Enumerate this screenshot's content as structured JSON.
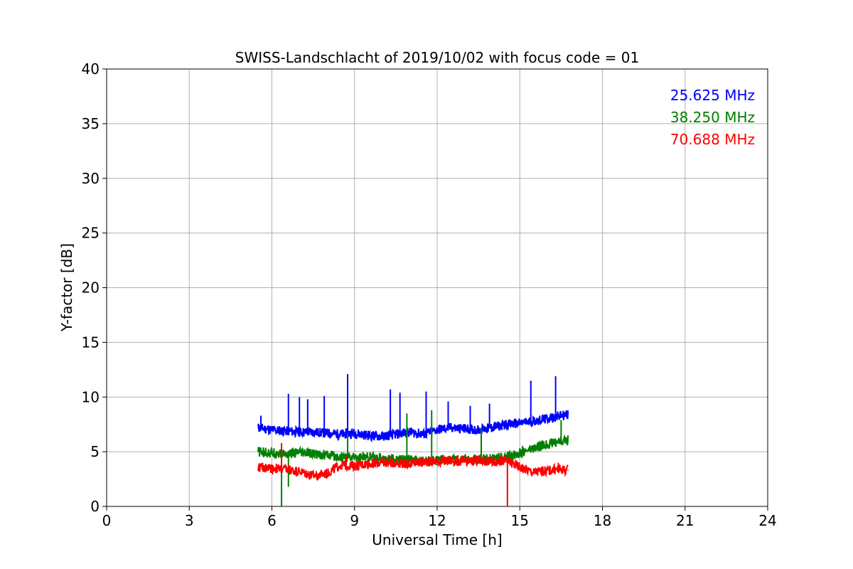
{
  "chart_data": {
    "type": "line",
    "title": "SWISS-Landschlacht of 2019/10/02 with focus code = 01",
    "xlabel": "Universal Time [h]",
    "ylabel": "Y-factor [dB]",
    "xlim": [
      0,
      24
    ],
    "ylim": [
      0,
      40
    ],
    "xticks": [
      0,
      3,
      6,
      9,
      12,
      15,
      18,
      21,
      24
    ],
    "yticks": [
      0,
      5,
      10,
      15,
      20,
      25,
      30,
      35,
      40
    ],
    "grid": true,
    "legend_position": "top-right",
    "series": [
      {
        "name": "25.625 MHz",
        "color": "#0000ff",
        "x": [
          5.5,
          6.0,
          6.5,
          7.0,
          7.5,
          8.0,
          8.5,
          9.0,
          9.5,
          10.0,
          10.5,
          11.0,
          11.5,
          12.0,
          12.5,
          13.0,
          13.5,
          14.0,
          14.5,
          15.0,
          15.5,
          16.0,
          16.5,
          16.75
        ],
        "y": [
          7.2,
          7.0,
          6.9,
          6.8,
          6.8,
          6.7,
          6.6,
          6.7,
          6.5,
          6.4,
          6.6,
          6.8,
          6.6,
          7.0,
          7.2,
          7.1,
          7.0,
          7.2,
          7.5,
          7.6,
          7.8,
          8.0,
          8.3,
          8.4
        ],
        "spikes": [
          [
            5.6,
            8.3
          ],
          [
            6.6,
            10.3
          ],
          [
            7.0,
            10.0
          ],
          [
            7.3,
            9.8
          ],
          [
            7.9,
            10.1
          ],
          [
            8.75,
            12.1
          ],
          [
            10.3,
            10.7
          ],
          [
            10.65,
            10.4
          ],
          [
            11.6,
            10.5
          ],
          [
            12.4,
            9.6
          ],
          [
            13.2,
            9.2
          ],
          [
            13.9,
            9.4
          ],
          [
            15.4,
            11.5
          ],
          [
            16.3,
            11.9
          ]
        ]
      },
      {
        "name": "38.250 MHz",
        "color": "#008000",
        "x": [
          5.5,
          6.0,
          6.5,
          7.0,
          7.5,
          8.0,
          8.5,
          9.0,
          9.5,
          10.0,
          10.5,
          11.0,
          11.5,
          12.0,
          12.5,
          13.0,
          13.5,
          14.0,
          14.5,
          15.0,
          15.5,
          16.0,
          16.5,
          16.75
        ],
        "y": [
          5.0,
          4.9,
          4.8,
          4.9,
          4.8,
          4.7,
          4.5,
          4.5,
          4.5,
          4.4,
          4.3,
          4.3,
          4.1,
          4.2,
          4.3,
          4.3,
          4.3,
          4.4,
          4.5,
          4.9,
          5.3,
          5.7,
          6.0,
          6.1
        ],
        "spikes": [
          [
            6.35,
            0.0
          ],
          [
            6.6,
            1.8
          ],
          [
            8.75,
            6.7
          ],
          [
            10.9,
            8.5
          ],
          [
            11.8,
            8.8
          ],
          [
            13.6,
            7.2
          ],
          [
            16.5,
            7.9
          ]
        ]
      },
      {
        "name": "70.688 MHz",
        "color": "#ff0000",
        "x": [
          5.5,
          6.0,
          6.5,
          7.0,
          7.5,
          8.0,
          8.5,
          9.0,
          9.5,
          10.0,
          10.5,
          11.0,
          11.5,
          12.0,
          12.5,
          13.0,
          13.5,
          14.0,
          14.5,
          15.0,
          15.5,
          16.0,
          16.5,
          16.75
        ],
        "y": [
          3.6,
          3.5,
          3.4,
          3.2,
          2.8,
          3.0,
          3.8,
          3.7,
          3.9,
          4.0,
          4.0,
          3.9,
          4.1,
          4.1,
          4.2,
          4.1,
          4.2,
          4.1,
          4.2,
          3.6,
          3.1,
          3.3,
          3.4,
          3.3
        ],
        "spikes": [
          [
            6.35,
            5.8
          ],
          [
            8.7,
            4.6
          ],
          [
            14.55,
            0.0
          ],
          [
            16.4,
            4.0
          ]
        ]
      }
    ]
  }
}
